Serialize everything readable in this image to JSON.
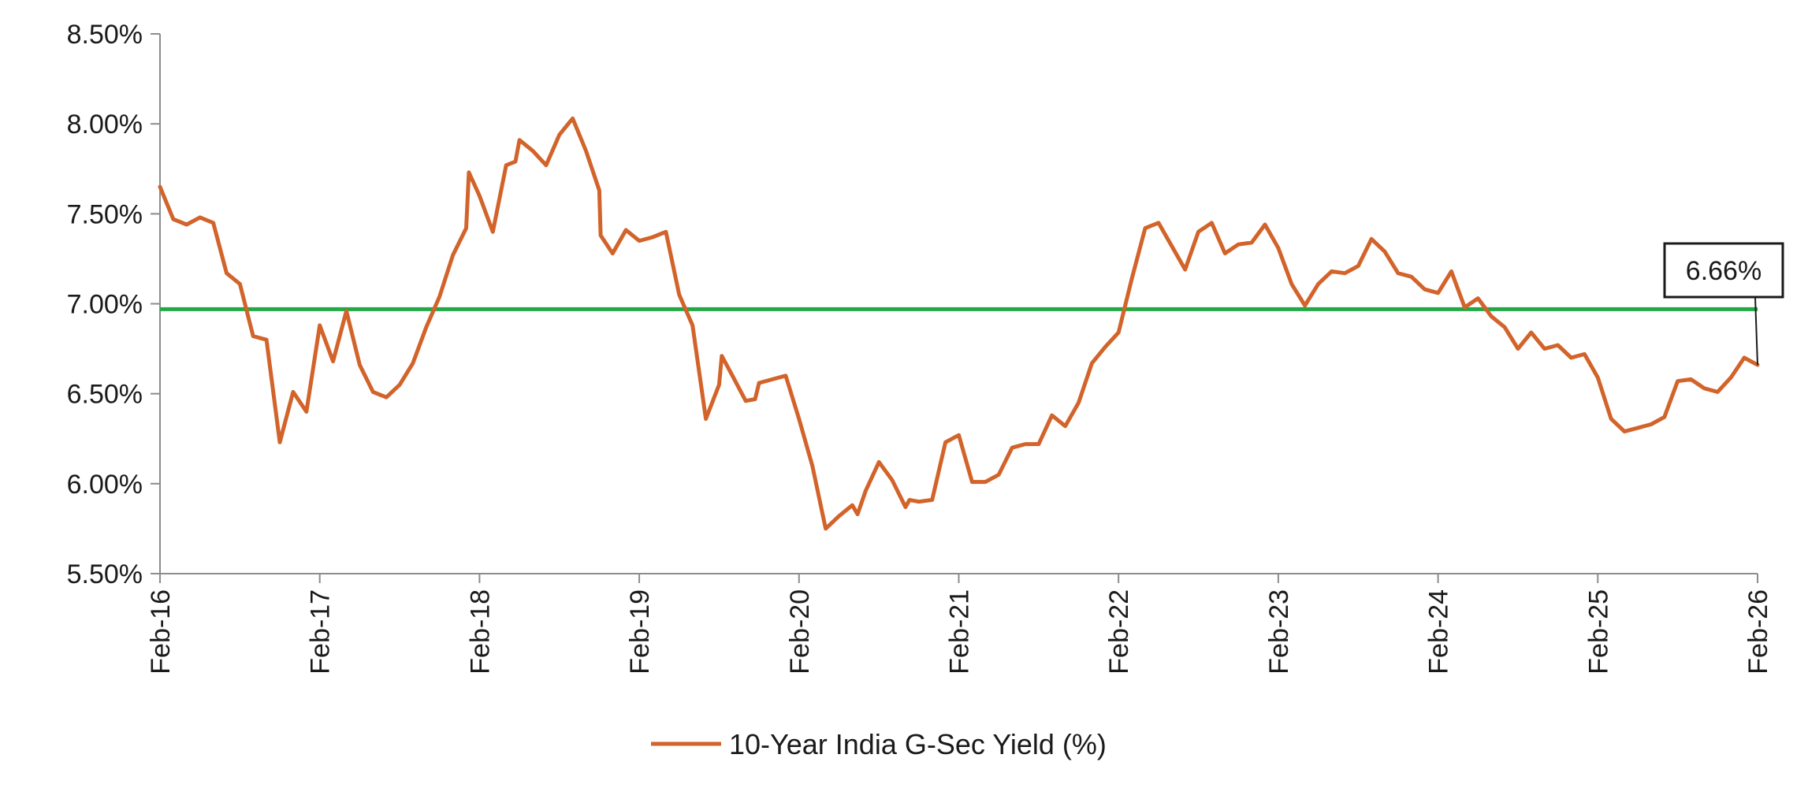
{
  "chart_data": {
    "type": "line",
    "title": "",
    "xlabel": "",
    "ylabel": "",
    "ylim": [
      5.5,
      8.5
    ],
    "y_ticks": [
      "5.50%",
      "6.00%",
      "6.50%",
      "7.00%",
      "7.50%",
      "8.00%",
      "8.50%"
    ],
    "x_ticks": [
      "Feb-16",
      "Feb-17",
      "Feb-18",
      "Feb-19",
      "Feb-20",
      "Feb-21",
      "Feb-22",
      "Feb-23",
      "Feb-24",
      "Feb-25",
      "Feb-26"
    ],
    "x_range_months": [
      0,
      120
    ],
    "reference_line": {
      "value": 6.97,
      "color": "#22A845"
    },
    "series": [
      {
        "name": "10-Year India G-Sec Yield (%)",
        "color": "#D2632A",
        "points": [
          [
            0,
            7.65
          ],
          [
            1,
            7.47
          ],
          [
            2,
            7.44
          ],
          [
            3,
            7.48
          ],
          [
            4,
            7.45
          ],
          [
            5,
            7.17
          ],
          [
            6,
            7.11
          ],
          [
            7,
            6.82
          ],
          [
            8,
            6.8
          ],
          [
            9,
            6.23
          ],
          [
            10,
            6.51
          ],
          [
            11,
            6.4
          ],
          [
            12,
            6.88
          ],
          [
            13,
            6.68
          ],
          [
            14,
            6.96
          ],
          [
            15,
            6.66
          ],
          [
            16,
            6.51
          ],
          [
            17,
            6.48
          ],
          [
            18,
            6.55
          ],
          [
            19,
            6.67
          ],
          [
            20,
            6.87
          ],
          [
            21,
            7.04
          ],
          [
            22,
            7.27
          ],
          [
            23,
            7.42
          ],
          [
            23.2,
            7.73
          ],
          [
            24,
            7.6
          ],
          [
            25,
            7.4
          ],
          [
            26,
            7.77
          ],
          [
            26.7,
            7.79
          ],
          [
            27,
            7.91
          ],
          [
            28,
            7.85
          ],
          [
            29,
            7.77
          ],
          [
            30,
            7.94
          ],
          [
            31,
            8.03
          ],
          [
            32,
            7.85
          ],
          [
            33,
            7.63
          ],
          [
            33.1,
            7.38
          ],
          [
            34,
            7.28
          ],
          [
            35,
            7.41
          ],
          [
            36,
            7.35
          ],
          [
            37,
            7.37
          ],
          [
            38,
            7.4
          ],
          [
            39,
            7.05
          ],
          [
            40,
            6.88
          ],
          [
            41,
            6.36
          ],
          [
            42,
            6.55
          ],
          [
            42.2,
            6.71
          ],
          [
            43,
            6.6
          ],
          [
            44,
            6.46
          ],
          [
            44.7,
            6.47
          ],
          [
            45,
            6.56
          ],
          [
            46,
            6.58
          ],
          [
            47,
            6.6
          ],
          [
            48,
            6.36
          ],
          [
            49,
            6.1
          ],
          [
            50,
            5.75
          ],
          [
            51,
            5.82
          ],
          [
            52,
            5.88
          ],
          [
            52.4,
            5.83
          ],
          [
            53,
            5.96
          ],
          [
            54,
            6.12
          ],
          [
            55,
            6.02
          ],
          [
            56,
            5.87
          ],
          [
            56.3,
            5.91
          ],
          [
            57,
            5.9
          ],
          [
            58,
            5.91
          ],
          [
            59,
            6.23
          ],
          [
            60,
            6.27
          ],
          [
            61,
            6.01
          ],
          [
            62,
            6.01
          ],
          [
            63,
            6.05
          ],
          [
            64,
            6.2
          ],
          [
            65,
            6.22
          ],
          [
            66,
            6.22
          ],
          [
            67,
            6.38
          ],
          [
            68,
            6.32
          ],
          [
            69,
            6.45
          ],
          [
            70,
            6.67
          ],
          [
            71,
            6.76
          ],
          [
            72,
            6.84
          ],
          [
            73,
            7.14
          ],
          [
            74,
            7.42
          ],
          [
            75,
            7.45
          ],
          [
            76,
            7.32
          ],
          [
            77,
            7.19
          ],
          [
            78,
            7.4
          ],
          [
            79,
            7.45
          ],
          [
            80,
            7.28
          ],
          [
            81,
            7.33
          ],
          [
            82,
            7.34
          ],
          [
            83,
            7.44
          ],
          [
            84,
            7.31
          ],
          [
            85,
            7.11
          ],
          [
            86,
            6.99
          ],
          [
            87,
            7.11
          ],
          [
            88,
            7.18
          ],
          [
            89,
            7.17
          ],
          [
            90,
            7.21
          ],
          [
            91,
            7.36
          ],
          [
            92,
            7.29
          ],
          [
            93,
            7.17
          ],
          [
            94,
            7.15
          ],
          [
            95,
            7.08
          ],
          [
            96,
            7.06
          ],
          [
            97,
            7.18
          ],
          [
            98,
            6.98
          ],
          [
            99,
            7.03
          ],
          [
            100,
            6.93
          ],
          [
            101,
            6.87
          ],
          [
            102,
            6.75
          ],
          [
            103,
            6.84
          ],
          [
            104,
            6.75
          ],
          [
            105,
            6.77
          ],
          [
            106,
            6.7
          ],
          [
            107,
            6.72
          ],
          [
            108,
            6.59
          ],
          [
            109,
            6.36
          ],
          [
            110,
            6.29
          ],
          [
            111,
            6.31
          ],
          [
            112,
            6.33
          ],
          [
            113,
            6.37
          ],
          [
            114,
            6.57
          ],
          [
            115,
            6.58
          ],
          [
            116,
            6.53
          ],
          [
            117,
            6.51
          ],
          [
            118,
            6.59
          ],
          [
            119,
            6.7
          ],
          [
            120,
            6.66
          ]
        ]
      }
    ],
    "annotation": {
      "text": "6.66%",
      "x": 120,
      "value": 6.66
    },
    "legend": {
      "label": "10-Year India G-Sec Yield (%)",
      "position": "bottom-center"
    }
  }
}
